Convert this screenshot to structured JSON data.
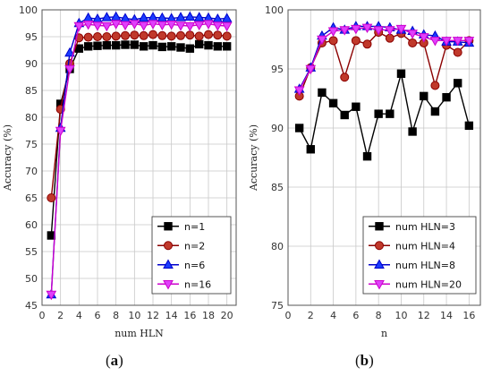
{
  "panels": {
    "a": {
      "label_open": "(",
      "label_letter": "a",
      "label_close": ")"
    },
    "b": {
      "label_open": "(",
      "label_letter": "b",
      "label_close": ")"
    }
  },
  "chart_data": [
    {
      "type": "line",
      "panel": "a",
      "xlabel": "num HLN",
      "ylabel": "Accuracy (%)",
      "xlim": [
        0,
        21
      ],
      "ylim": [
        45,
        100
      ],
      "xticks": [
        0,
        2,
        4,
        6,
        8,
        10,
        12,
        14,
        16,
        18,
        20
      ],
      "yticks": [
        45,
        50,
        55,
        60,
        65,
        70,
        75,
        80,
        85,
        90,
        95,
        100
      ],
      "grid": true,
      "legend_position": "bottom-right",
      "x": [
        1,
        2,
        3,
        4,
        5,
        6,
        7,
        8,
        9,
        10,
        11,
        12,
        13,
        14,
        15,
        16,
        17,
        18,
        19,
        20
      ],
      "series": [
        {
          "name": "n=1",
          "marker": "square",
          "color": "#000000",
          "fill": "#000000",
          "values": [
            58,
            82.5,
            89,
            92.8,
            93.2,
            93.3,
            93.4,
            93.4,
            93.5,
            93.5,
            93.2,
            93.4,
            93.1,
            93.2,
            93,
            92.8,
            93.6,
            93.4,
            93.2,
            93.2
          ]
        },
        {
          "name": "n=2",
          "marker": "circle",
          "color": "#8b0000",
          "fill": "#c0392b",
          "values": [
            65,
            81.5,
            90,
            94.8,
            94.9,
            95,
            95,
            95.1,
            95.2,
            95.3,
            95.2,
            95.4,
            95.2,
            95.1,
            95.2,
            95.3,
            95.1,
            95.4,
            95.3,
            95.1
          ]
        },
        {
          "name": "n=6",
          "marker": "triangle",
          "color": "#0000cc",
          "fill": "#1a3cff",
          "values": [
            47,
            78,
            92,
            97.5,
            98.5,
            98.3,
            98.6,
            98.7,
            98.4,
            98.2,
            98.5,
            98.6,
            98.5,
            98.4,
            98.6,
            98.7,
            98.6,
            98.5,
            98.3,
            98.4
          ]
        },
        {
          "name": "n=16",
          "marker": "triangle-down",
          "color": "#cc00cc",
          "fill": "#e040fb",
          "values": [
            47,
            77.5,
            89,
            97,
            97.3,
            97.1,
            97,
            97.4,
            97.2,
            97.4,
            97.1,
            97.4,
            97.2,
            97.3,
            97.1,
            97,
            97.2,
            97.4,
            97.1,
            97
          ]
        }
      ]
    },
    {
      "type": "line",
      "panel": "b",
      "xlabel": "n",
      "ylabel": "Accuracy (%)",
      "xlim": [
        0,
        17
      ],
      "ylim": [
        75,
        100
      ],
      "xticks": [
        0,
        2,
        4,
        6,
        8,
        10,
        12,
        14,
        16
      ],
      "yticks": [
        75,
        80,
        85,
        90,
        95,
        100
      ],
      "grid": true,
      "legend_position": "bottom-right",
      "x": [
        1,
        2,
        3,
        4,
        5,
        6,
        7,
        8,
        9,
        10,
        11,
        12,
        13,
        14,
        15,
        16
      ],
      "series": [
        {
          "name": "num HLN=3",
          "marker": "square",
          "color": "#000000",
          "fill": "#000000",
          "values": [
            90,
            88.2,
            93,
            92.1,
            91.1,
            91.8,
            87.6,
            91.2,
            91.2,
            94.6,
            89.7,
            92.7,
            91.4,
            92.6,
            93.8,
            90.2
          ]
        },
        {
          "name": "num HLN=4",
          "marker": "circle",
          "color": "#8b0000",
          "fill": "#c0392b",
          "values": [
            92.7,
            95.1,
            97.2,
            97.4,
            94.3,
            97.4,
            97.1,
            98.1,
            97.6,
            98,
            97.2,
            97.2,
            93.6,
            97,
            96.4,
            97.4
          ]
        },
        {
          "name": "num HLN=8",
          "marker": "triangle",
          "color": "#0000cc",
          "fill": "#1a3cff",
          "values": [
            93.3,
            95.1,
            97.8,
            98.5,
            98.3,
            98.6,
            98.6,
            98.6,
            98.5,
            98.3,
            98.2,
            97.9,
            97.8,
            97.3,
            97.3,
            97.2
          ]
        },
        {
          "name": "num HLN=20",
          "marker": "triangle-down",
          "color": "#cc00cc",
          "fill": "#e040fb",
          "values": [
            93.2,
            95,
            97.5,
            98.2,
            98.3,
            98.4,
            98.5,
            98.3,
            98.3,
            98.4,
            98,
            97.7,
            97.4,
            97.4,
            97.4,
            97.4
          ]
        }
      ]
    }
  ]
}
